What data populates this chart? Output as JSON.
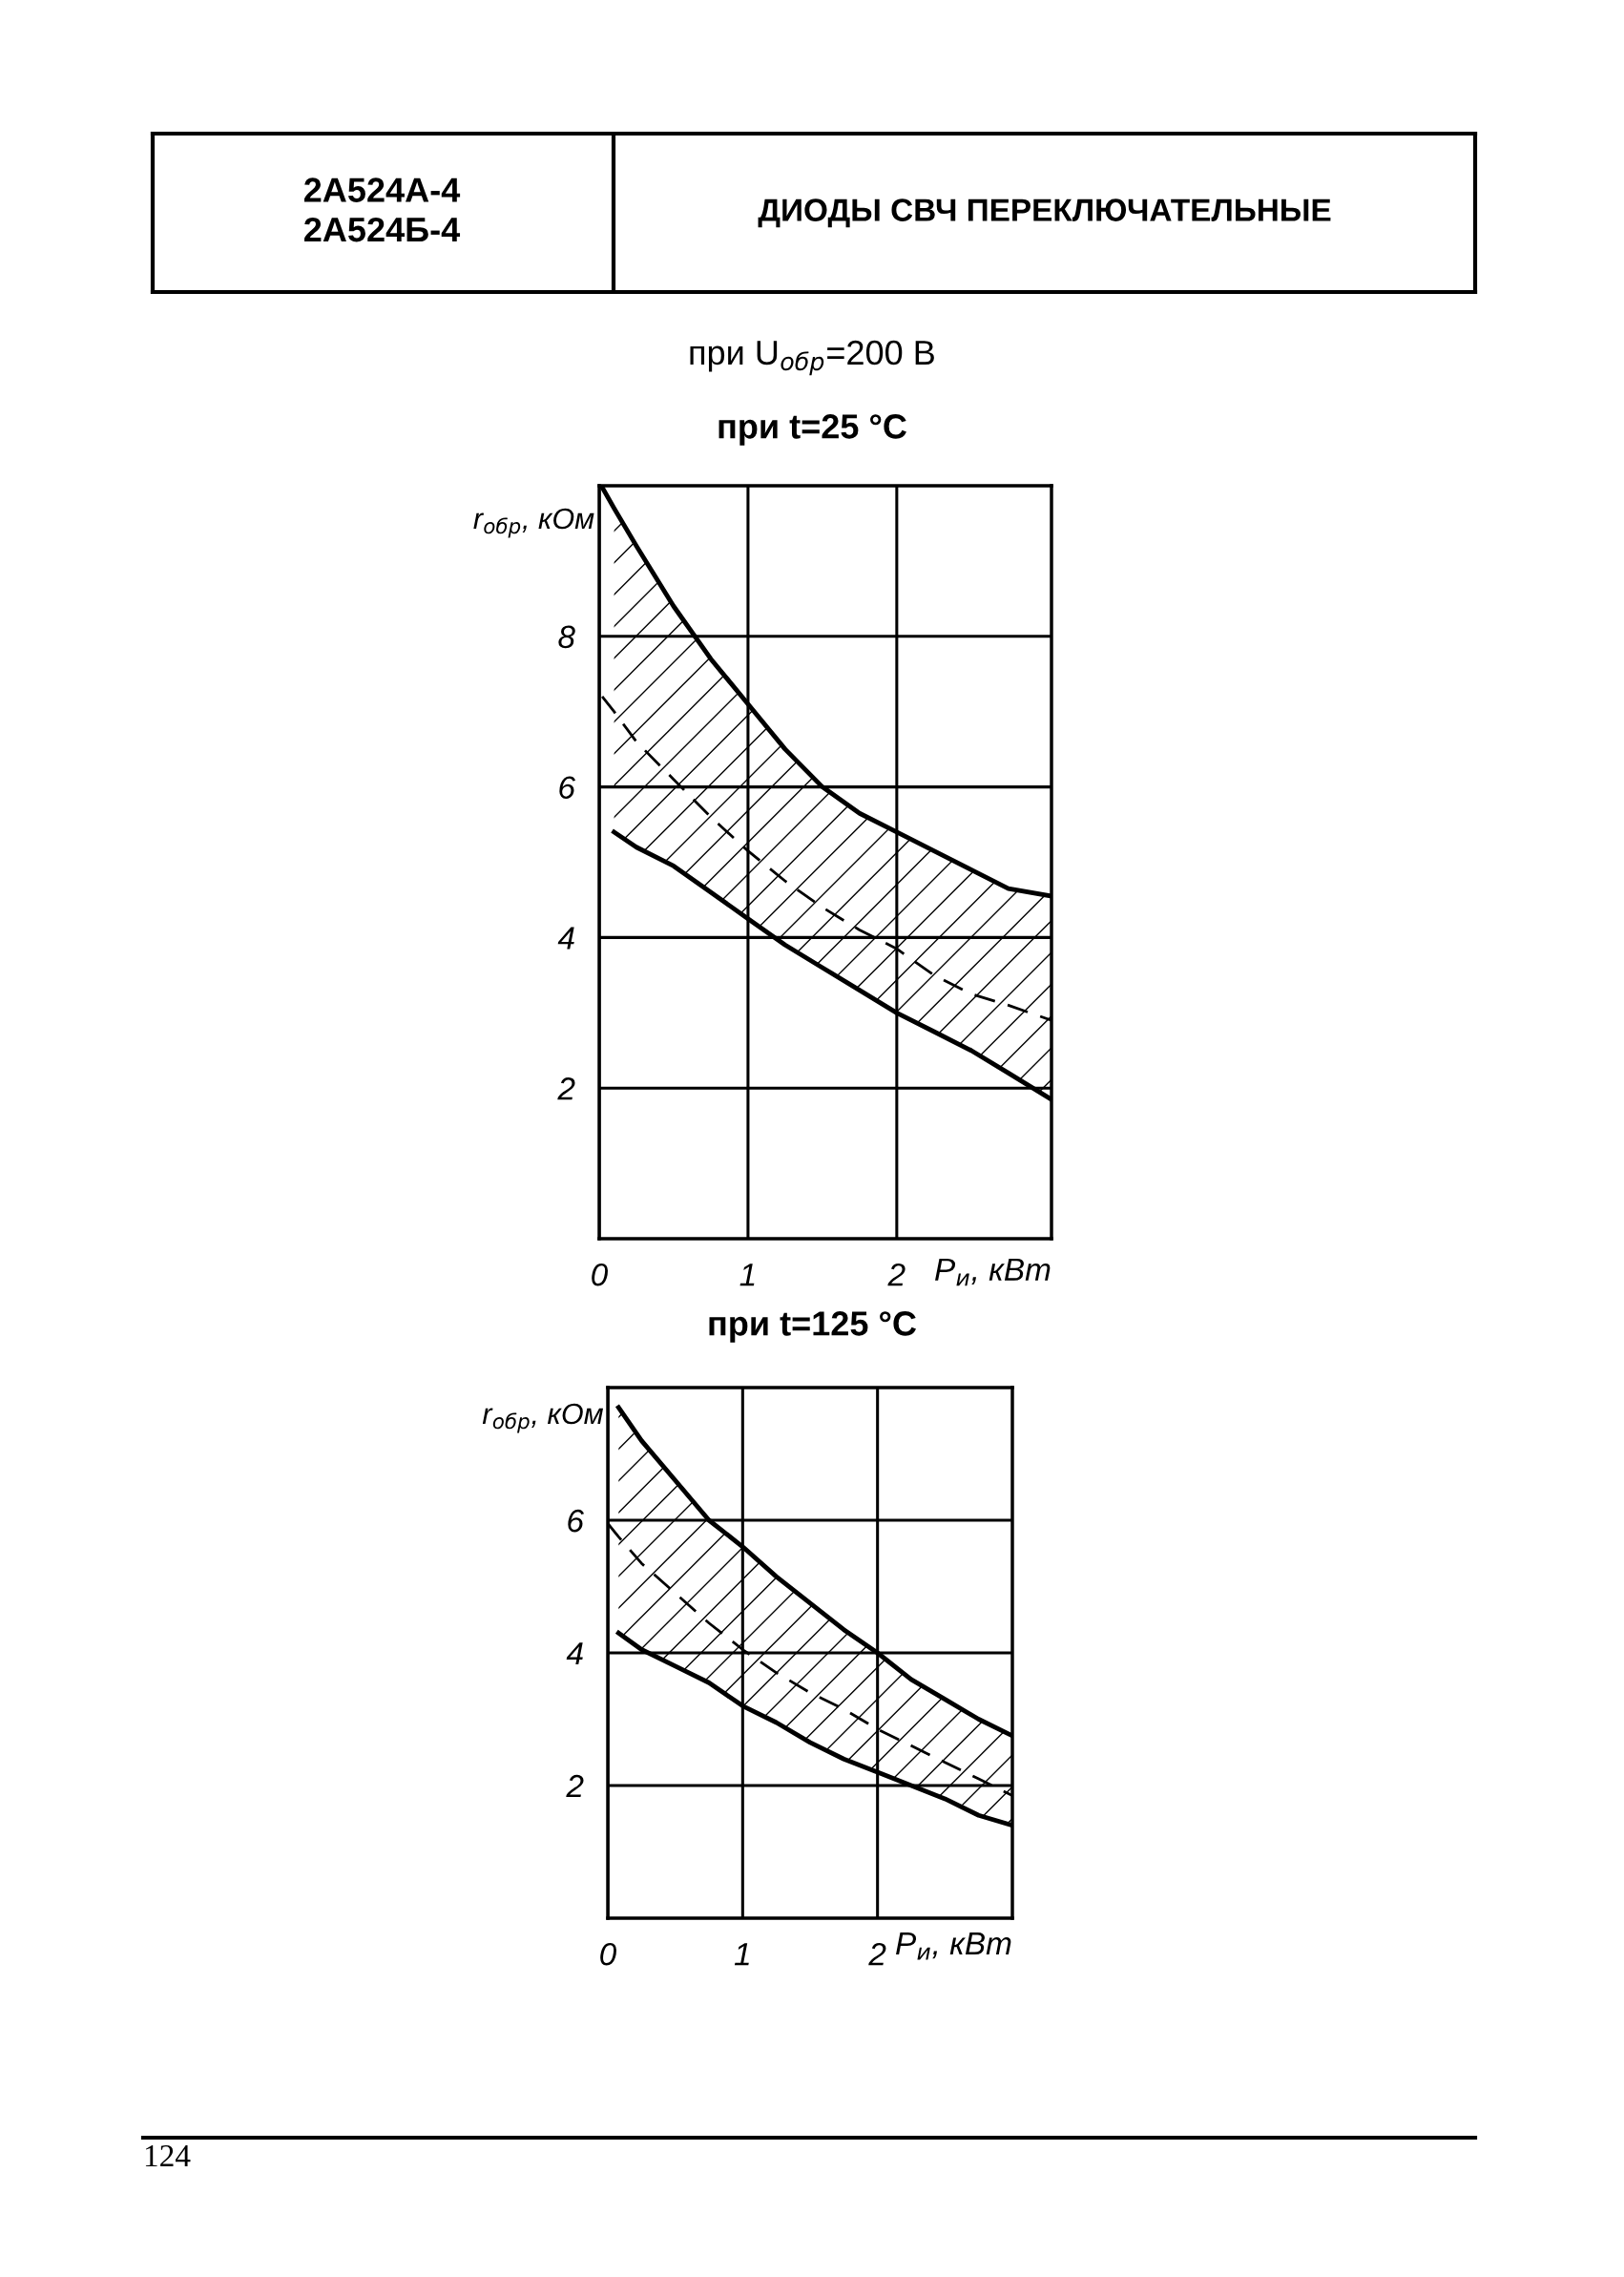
{
  "chart_data": [
    {
      "type": "line",
      "title": "при t=25 °C",
      "subtitle": "при U$_{обр}$=200 В",
      "xlabel": "P$_{и}$, кВт",
      "ylabel": "r$_{обр}$, кОм",
      "annotations": [
        "2А524А-4\n2А524Б-4",
        "ДИОДЫ СВЧ ПЕРЕКЛЮЧАТЕЛЬНЫЕ"
      ],
      "x": [
        0.02,
        0.1,
        0.25,
        0.5,
        0.75,
        1,
        1.25,
        1.5,
        1.75,
        2,
        2.25,
        2.5,
        2.75,
        3.04
      ],
      "series": [
        {
          "color": "#000000",
          "line_style": "solid",
          "values": [
            9.98,
            9.7,
            9.2,
            8.4,
            7.7,
            7.1,
            6.5,
            6.0,
            5.65,
            5.4,
            5.15,
            4.9,
            4.65,
            4.55
          ]
        },
        {
          "color": "#000000",
          "line_style": "dashed",
          "values": [
            7.2,
            7.0,
            6.6,
            6.1,
            5.6,
            5.15,
            4.75,
            4.4,
            4.1,
            3.85,
            3.5,
            3.25,
            3.1,
            2.9
          ],
          "upper": [
            null,
            9.7,
            9.2,
            8.4,
            7.7,
            7.1,
            6.5,
            6.0,
            5.65,
            5.4,
            5.15,
            4.9,
            4.65,
            4.55
          ],
          "lower": [
            null,
            5.4,
            5.2,
            4.95,
            4.6,
            4.25,
            3.9,
            3.6,
            3.3,
            3.0,
            2.75,
            2.5,
            2.2,
            1.85
          ]
        },
        {
          "color": "#000000",
          "line_style": "solid",
          "values": [
            null,
            5.4,
            5.2,
            4.95,
            4.6,
            4.25,
            3.9,
            3.6,
            3.3,
            3.0,
            2.75,
            2.5,
            2.2,
            1.85
          ]
        }
      ],
      "xlim": [
        0,
        3.04
      ],
      "ylim": [
        0,
        10
      ],
      "xticks": [
        0,
        1,
        2
      ],
      "yticks": [
        2,
        4,
        6,
        8
      ],
      "grid": true,
      "legend": false,
      "marker": "none"
    },
    {
      "type": "line",
      "title": "при t=125 °C",
      "xlabel": "P$_{и}$, кВт",
      "ylabel": "r$_{обр}$, кОм",
      "annotations": [
        "124"
      ],
      "x": [
        0,
        0.08,
        0.25,
        0.5,
        0.75,
        1,
        1.25,
        1.5,
        1.75,
        2,
        2.25,
        2.5,
        2.75,
        3
      ],
      "series": [
        {
          "color": "#000000",
          "line_style": "solid",
          "values": [
            null,
            7.7,
            7.2,
            6.6,
            6.0,
            5.6,
            5.15,
            4.75,
            4.35,
            4.0,
            3.6,
            3.3,
            3.0,
            2.75
          ]
        },
        {
          "color": "#000000",
          "line_style": "dashed",
          "values": [
            5.95,
            5.75,
            5.35,
            4.9,
            4.45,
            4.05,
            3.7,
            3.4,
            3.15,
            2.85,
            2.6,
            2.35,
            2.1,
            1.85
          ],
          "upper": [
            null,
            7.7,
            7.2,
            6.6,
            6.0,
            5.6,
            5.15,
            4.75,
            4.35,
            4.0,
            3.6,
            3.3,
            3.0,
            2.75
          ],
          "lower": [
            null,
            4.3,
            4.05,
            3.8,
            3.55,
            3.2,
            2.95,
            2.65,
            2.4,
            2.2,
            2.0,
            1.8,
            1.55,
            1.4
          ]
        },
        {
          "color": "#000000",
          "line_style": "solid",
          "values": [
            null,
            4.3,
            4.05,
            3.8,
            3.55,
            3.2,
            2.95,
            2.65,
            2.4,
            2.2,
            2.0,
            1.8,
            1.55,
            1.4
          ]
        }
      ],
      "xlim": [
        0,
        3
      ],
      "ylim": [
        0,
        8
      ],
      "xticks": [
        0,
        1,
        2
      ],
      "yticks": [
        2,
        4,
        6
      ],
      "grid": true,
      "legend": false,
      "marker": "none"
    }
  ]
}
